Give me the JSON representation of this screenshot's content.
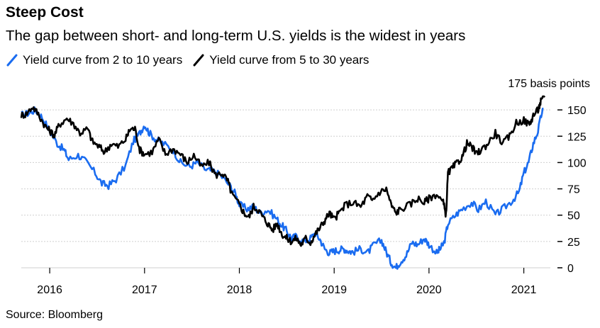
{
  "title": "Steep Cost",
  "subtitle": "The gap between short- and long-term U.S. yields is the widest in years",
  "source": "Source: Bloomberg",
  "colors": {
    "blue": "#1a6cf0",
    "black": "#000000",
    "grid": "#cfcfcf"
  },
  "chart_data": {
    "type": "line",
    "y_unit_label": "175 basis points",
    "y_ticks": [
      0,
      25,
      50,
      75,
      100,
      125,
      150
    ],
    "ylim": [
      0,
      175
    ],
    "x_ticks": [
      "2016",
      "2017",
      "2018",
      "2019",
      "2020",
      "2021"
    ],
    "xlim": [
      2015.7,
      2021.25
    ],
    "grid": true,
    "legend_placement": "top-left",
    "series": [
      {
        "name": "Yield curve from 2 to 10 years",
        "color": "#1a6cf0",
        "points": [
          [
            2015.7,
            145
          ],
          [
            2015.78,
            147
          ],
          [
            2015.85,
            150
          ],
          [
            2015.92,
            143
          ],
          [
            2016.0,
            130
          ],
          [
            2016.08,
            118
          ],
          [
            2016.15,
            112
          ],
          [
            2016.2,
            103
          ],
          [
            2016.3,
            107
          ],
          [
            2016.38,
            101
          ],
          [
            2016.48,
            90
          ],
          [
            2016.55,
            80
          ],
          [
            2016.62,
            78
          ],
          [
            2016.7,
            84
          ],
          [
            2016.8,
            97
          ],
          [
            2016.88,
            120
          ],
          [
            2016.95,
            128
          ],
          [
            2017.0,
            136
          ],
          [
            2017.05,
            128
          ],
          [
            2017.12,
            122
          ],
          [
            2017.2,
            118
          ],
          [
            2017.3,
            112
          ],
          [
            2017.38,
            100
          ],
          [
            2017.48,
            96
          ],
          [
            2017.55,
            100
          ],
          [
            2017.65,
            93
          ],
          [
            2017.72,
            92
          ],
          [
            2017.8,
            88
          ],
          [
            2017.9,
            78
          ],
          [
            2017.96,
            70
          ],
          [
            2018.0,
            60
          ],
          [
            2018.08,
            56
          ],
          [
            2018.15,
            58
          ],
          [
            2018.22,
            52
          ],
          [
            2018.3,
            55
          ],
          [
            2018.38,
            48
          ],
          [
            2018.45,
            40
          ],
          [
            2018.5,
            35
          ],
          [
            2018.55,
            28
          ],
          [
            2018.6,
            30
          ],
          [
            2018.68,
            25
          ],
          [
            2018.75,
            28
          ],
          [
            2018.8,
            33
          ],
          [
            2018.85,
            27
          ],
          [
            2018.9,
            18
          ],
          [
            2018.95,
            14
          ],
          [
            2019.0,
            16
          ],
          [
            2019.05,
            17
          ],
          [
            2019.1,
            18
          ],
          [
            2019.15,
            16
          ],
          [
            2019.2,
            15
          ],
          [
            2019.28,
            18
          ],
          [
            2019.35,
            14
          ],
          [
            2019.42,
            22
          ],
          [
            2019.5,
            26
          ],
          [
            2019.55,
            15
          ],
          [
            2019.6,
            5
          ],
          [
            2019.65,
            0
          ],
          [
            2019.7,
            6
          ],
          [
            2019.76,
            12
          ],
          [
            2019.82,
            24
          ],
          [
            2019.88,
            22
          ],
          [
            2019.95,
            28
          ],
          [
            2020.0,
            22
          ],
          [
            2020.08,
            14
          ],
          [
            2020.12,
            18
          ],
          [
            2020.16,
            24
          ],
          [
            2020.2,
            42
          ],
          [
            2020.28,
            50
          ],
          [
            2020.35,
            56
          ],
          [
            2020.45,
            62
          ],
          [
            2020.52,
            55
          ],
          [
            2020.6,
            63
          ],
          [
            2020.7,
            50
          ],
          [
            2020.78,
            56
          ],
          [
            2020.88,
            64
          ],
          [
            2020.95,
            72
          ],
          [
            2021.0,
            90
          ],
          [
            2021.05,
            100
          ],
          [
            2021.1,
            118
          ],
          [
            2021.15,
            130
          ],
          [
            2021.2,
            152
          ]
        ]
      },
      {
        "name": "Yield curve from 5 to 30 years",
        "color": "#000000",
        "points": [
          [
            2015.7,
            145
          ],
          [
            2015.75,
            146
          ],
          [
            2015.82,
            153
          ],
          [
            2015.88,
            146
          ],
          [
            2015.95,
            135
          ],
          [
            2016.0,
            130
          ],
          [
            2016.05,
            126
          ],
          [
            2016.1,
            136
          ],
          [
            2016.18,
            142
          ],
          [
            2016.25,
            137
          ],
          [
            2016.32,
            128
          ],
          [
            2016.4,
            132
          ],
          [
            2016.45,
            120
          ],
          [
            2016.52,
            115
          ],
          [
            2016.58,
            110
          ],
          [
            2016.65,
            118
          ],
          [
            2016.72,
            115
          ],
          [
            2016.8,
            122
          ],
          [
            2016.85,
            132
          ],
          [
            2016.9,
            132
          ],
          [
            2016.95,
            112
          ],
          [
            2017.0,
            108
          ],
          [
            2017.08,
            110
          ],
          [
            2017.15,
            122
          ],
          [
            2017.22,
            108
          ],
          [
            2017.3,
            113
          ],
          [
            2017.38,
            108
          ],
          [
            2017.45,
            100
          ],
          [
            2017.52,
            107
          ],
          [
            2017.6,
            96
          ],
          [
            2017.68,
            100
          ],
          [
            2017.75,
            88
          ],
          [
            2017.82,
            90
          ],
          [
            2017.88,
            82
          ],
          [
            2017.92,
            70
          ],
          [
            2018.0,
            60
          ],
          [
            2018.05,
            52
          ],
          [
            2018.1,
            48
          ],
          [
            2018.15,
            58
          ],
          [
            2018.2,
            55
          ],
          [
            2018.25,
            48
          ],
          [
            2018.3,
            42
          ],
          [
            2018.35,
            36
          ],
          [
            2018.4,
            42
          ],
          [
            2018.45,
            32
          ],
          [
            2018.5,
            28
          ],
          [
            2018.55,
            25
          ],
          [
            2018.6,
            28
          ],
          [
            2018.65,
            22
          ],
          [
            2018.7,
            28
          ],
          [
            2018.75,
            24
          ],
          [
            2018.8,
            32
          ],
          [
            2018.85,
            38
          ],
          [
            2018.9,
            45
          ],
          [
            2018.95,
            52
          ],
          [
            2019.0,
            46
          ],
          [
            2019.05,
            52
          ],
          [
            2019.12,
            60
          ],
          [
            2019.2,
            62
          ],
          [
            2019.28,
            58
          ],
          [
            2019.35,
            68
          ],
          [
            2019.4,
            64
          ],
          [
            2019.48,
            72
          ],
          [
            2019.55,
            75
          ],
          [
            2019.6,
            60
          ],
          [
            2019.65,
            52
          ],
          [
            2019.7,
            56
          ],
          [
            2019.8,
            60
          ],
          [
            2019.88,
            66
          ],
          [
            2019.95,
            62
          ],
          [
            2020.0,
            66
          ],
          [
            2020.08,
            70
          ],
          [
            2020.15,
            62
          ],
          [
            2020.18,
            50
          ],
          [
            2020.2,
            90
          ],
          [
            2020.25,
            95
          ],
          [
            2020.3,
            100
          ],
          [
            2020.35,
            105
          ],
          [
            2020.4,
            118
          ],
          [
            2020.45,
            115
          ],
          [
            2020.5,
            108
          ],
          [
            2020.55,
            112
          ],
          [
            2020.62,
            118
          ],
          [
            2020.7,
            128
          ],
          [
            2020.78,
            118
          ],
          [
            2020.85,
            125
          ],
          [
            2020.92,
            138
          ],
          [
            2021.0,
            140
          ],
          [
            2021.06,
            136
          ],
          [
            2021.1,
            145
          ],
          [
            2021.15,
            150
          ],
          [
            2021.18,
            158
          ],
          [
            2021.22,
            162
          ]
        ]
      }
    ]
  }
}
